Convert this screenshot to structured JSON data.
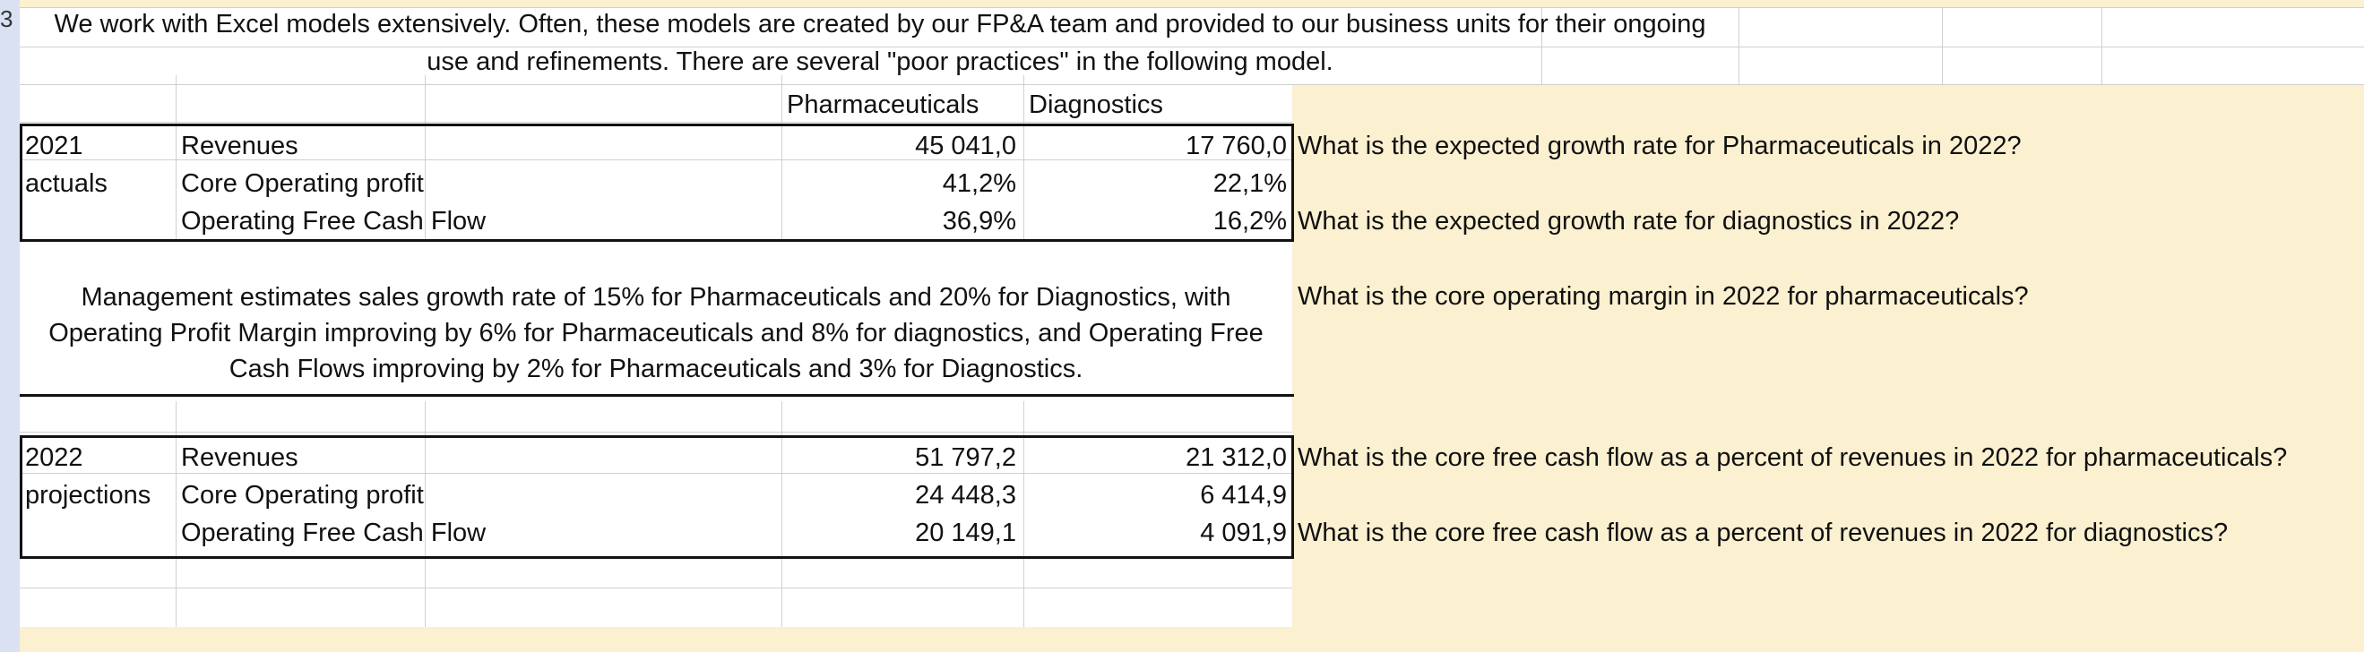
{
  "sheet": {
    "row_number": "3",
    "intro_line1": "We work with Excel models extensively.  Often, these models are created by our FP&A team and provided to our business units for their ongoing",
    "intro_line2": "use and refinements.  There are several \"poor practices\" in the following model.",
    "col_headers": {
      "pharma": "Pharmaceuticals",
      "diag": "Diagnostics"
    },
    "actuals": {
      "year": "2021",
      "label": "actuals",
      "rows": [
        {
          "name": "Revenues",
          "pharma": "45 041,0",
          "diag": "17 760,0"
        },
        {
          "name": "Core Operating profit",
          "pharma": "41,2%",
          "diag": "22,1%"
        },
        {
          "name": "Operating Free Cash Flow",
          "pharma": "36,9%",
          "diag": "16,2%"
        }
      ]
    },
    "management_note": "Management estimates sales growth rate of 15% for Pharmaceuticals and 20% for Diagnostics, with Operating Profit Margin improving by 6% for Pharmaceuticals and 8% for diagnostics, and Operating Free Cash Flows improving by 2% for Pharmaceuticals and 3% for Diagnostics.",
    "projections": {
      "year": "2022",
      "label": "projections",
      "rows": [
        {
          "name": "Revenues",
          "pharma": "51 797,2",
          "diag": "21 312,0"
        },
        {
          "name": "Core Operating profit",
          "pharma": "24 448,3",
          "diag": "6 414,9"
        },
        {
          "name": "Operating Free Cash Flow",
          "pharma": "20 149,1",
          "diag": "4 091,9"
        }
      ]
    },
    "questions": [
      "What is the expected growth rate for Pharmaceuticals in 2022?",
      "What is the expected growth rate for diagnostics in 2022?",
      "What is the core operating margin in 2022 for pharmaceuticals?",
      "What is the core free cash flow as a percent of revenues in 2022 for pharmaceuticals?",
      "What is the core free cash flow as a percent of revenues in 2022 for diagnostics?"
    ]
  },
  "colors": {
    "highlight": "#fbf0d0",
    "row_header": "#d9e1f2",
    "gridline": "#d0d0d0",
    "border": "#111111"
  }
}
